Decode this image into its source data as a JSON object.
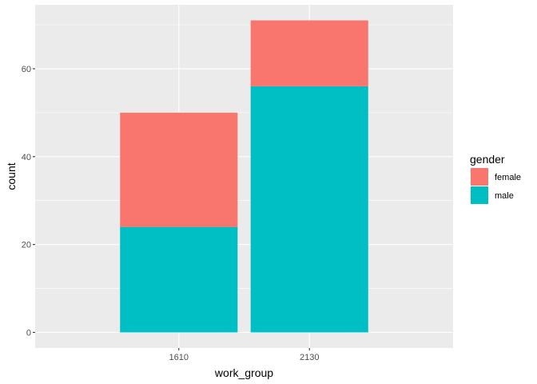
{
  "chart_data": {
    "type": "bar",
    "stacked": true,
    "title": "",
    "xlabel": "work_group",
    "ylabel": "count",
    "categories": [
      "1610",
      "2130"
    ],
    "series": [
      {
        "name": "male",
        "values": [
          24,
          56
        ],
        "color": "#00BFC4"
      },
      {
        "name": "female",
        "values": [
          26,
          15
        ],
        "color": "#F8766D"
      }
    ],
    "ylim": [
      -3.55,
      74.55
    ],
    "yticks": [
      0,
      20,
      40,
      60
    ],
    "ytick_labels": [
      "0",
      "20",
      "40",
      "60"
    ],
    "grid": true,
    "legend": {
      "title": "gender",
      "position": "right",
      "items": [
        {
          "label": "female",
          "color": "#F8766D"
        },
        {
          "label": "male",
          "color": "#00BFC4"
        }
      ]
    },
    "panel_background": "#EBEBEB",
    "grid_color": "#FFFFFF"
  }
}
